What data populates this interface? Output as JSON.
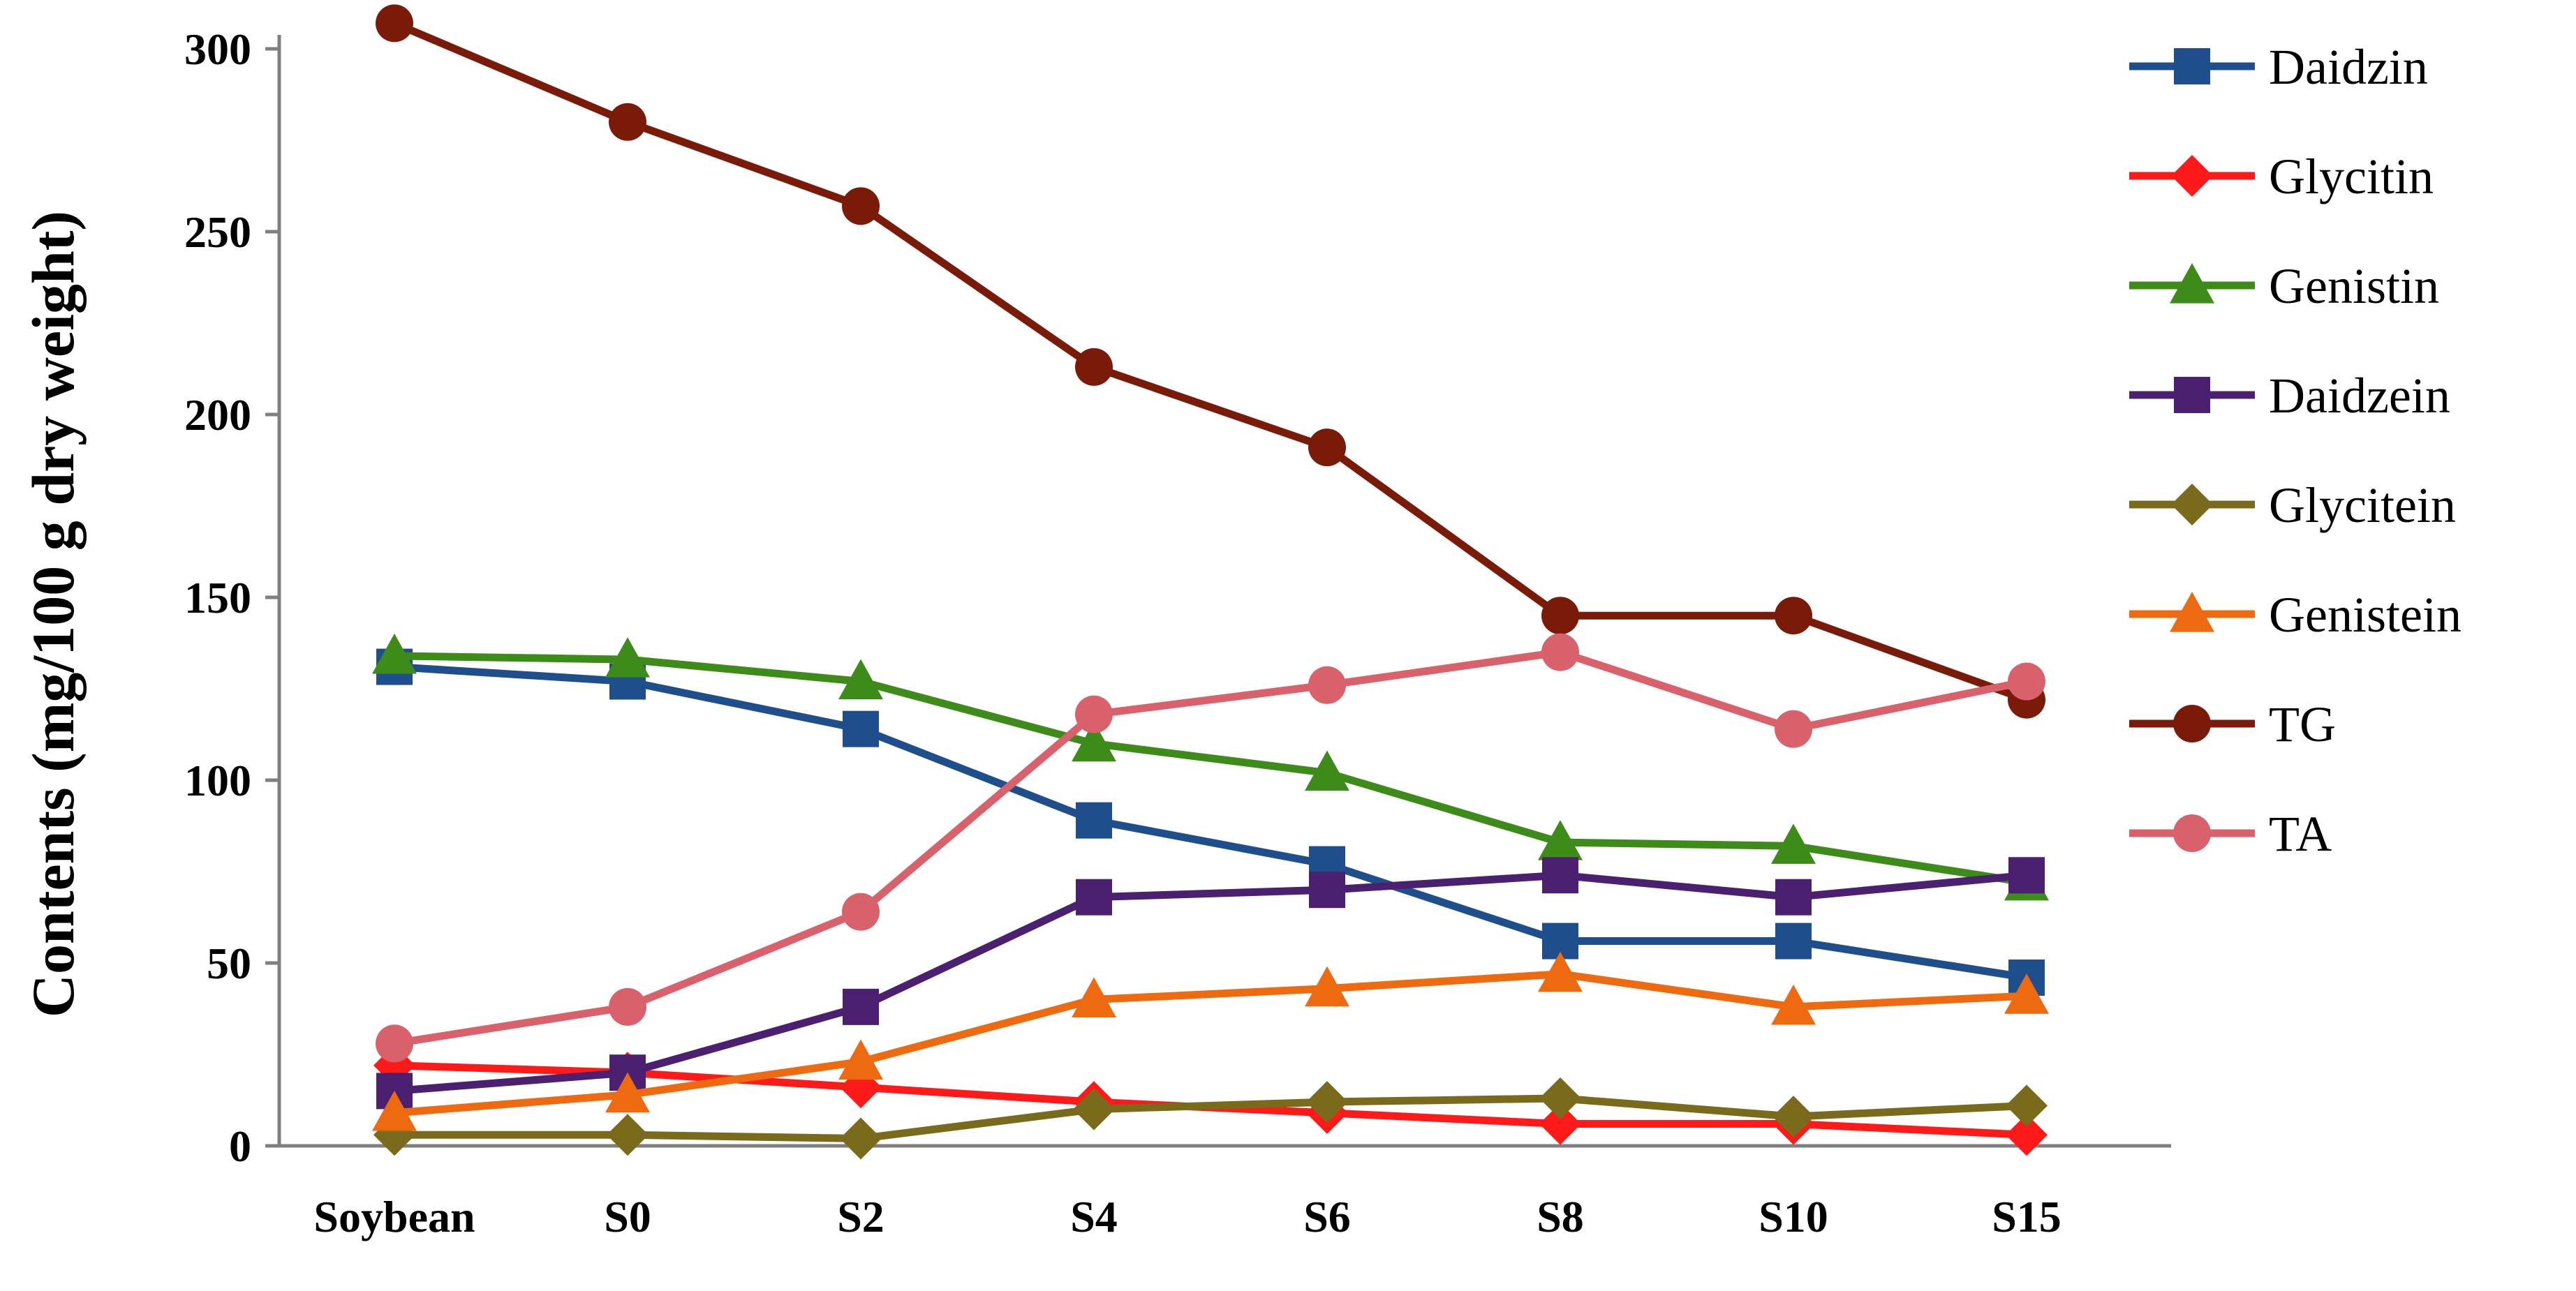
{
  "chart_data": {
    "type": "line",
    "title": "",
    "xlabel": "",
    "ylabel": "Contents (mg/100 g dry weight)",
    "ylim": [
      0,
      300
    ],
    "yticks": [
      0,
      50,
      100,
      150,
      200,
      250,
      300
    ],
    "grid": false,
    "legend_position": "right",
    "categories": [
      "Soybean",
      "S0",
      "S2",
      "S4",
      "S6",
      "S8",
      "S10",
      "S15"
    ],
    "series": [
      {
        "name": "Daidzin",
        "color": "#1f4e8c",
        "marker": "square",
        "values": [
          131,
          127,
          114,
          89,
          77,
          56,
          56,
          46
        ]
      },
      {
        "name": "Glycitin",
        "color": "#ff1a1a",
        "marker": "diamond",
        "values": [
          22,
          20,
          16,
          12,
          9,
          6,
          6,
          3
        ]
      },
      {
        "name": "Genistin",
        "color": "#3d8c1a",
        "marker": "triangle",
        "values": [
          134,
          133,
          127,
          110,
          102,
          83,
          82,
          72
        ]
      },
      {
        "name": "Daidzein",
        "color": "#4b2070",
        "marker": "square",
        "values": [
          15,
          20,
          38,
          68,
          70,
          74,
          68,
          74
        ]
      },
      {
        "name": "Glycitein",
        "color": "#7a6a1c",
        "marker": "diamond",
        "values": [
          3,
          3,
          2,
          10,
          12,
          13,
          8,
          11
        ]
      },
      {
        "name": "Genistein",
        "color": "#ee6a10",
        "marker": "triangle",
        "values": [
          9,
          14,
          23,
          40,
          43,
          47,
          38,
          41
        ]
      },
      {
        "name": "TG",
        "color": "#7a1a08",
        "marker": "circle",
        "values": [
          307,
          280,
          257,
          213,
          191,
          145,
          145,
          122
        ]
      },
      {
        "name": "TA",
        "color": "#d9616b",
        "marker": "circle",
        "values": [
          28,
          38,
          64,
          118,
          126,
          135,
          114,
          127
        ]
      }
    ]
  }
}
